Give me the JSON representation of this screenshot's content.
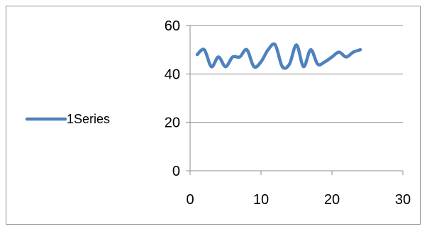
{
  "chart_data": {
    "type": "line",
    "title": "",
    "xlabel": "",
    "ylabel": "",
    "xlim": [
      0,
      30
    ],
    "ylim": [
      0,
      60
    ],
    "x_ticks": [
      0,
      10,
      20,
      30
    ],
    "y_ticks": [
      0,
      20,
      40,
      60
    ],
    "grid": "horizontal",
    "legend_position": "left",
    "series": [
      {
        "name": "1Series",
        "color": "#4f81bd",
        "x": [
          1,
          2,
          3,
          4,
          5,
          6,
          7,
          8,
          9,
          10,
          11,
          12,
          13,
          14,
          15,
          16,
          17,
          18,
          19,
          20,
          21,
          22,
          23,
          24
        ],
        "y": [
          48,
          50,
          43,
          47,
          43,
          47,
          47,
          50,
          43,
          45,
          50,
          52,
          43,
          44,
          52,
          43,
          50,
          44,
          45,
          47,
          49,
          47,
          49,
          50
        ]
      }
    ]
  }
}
